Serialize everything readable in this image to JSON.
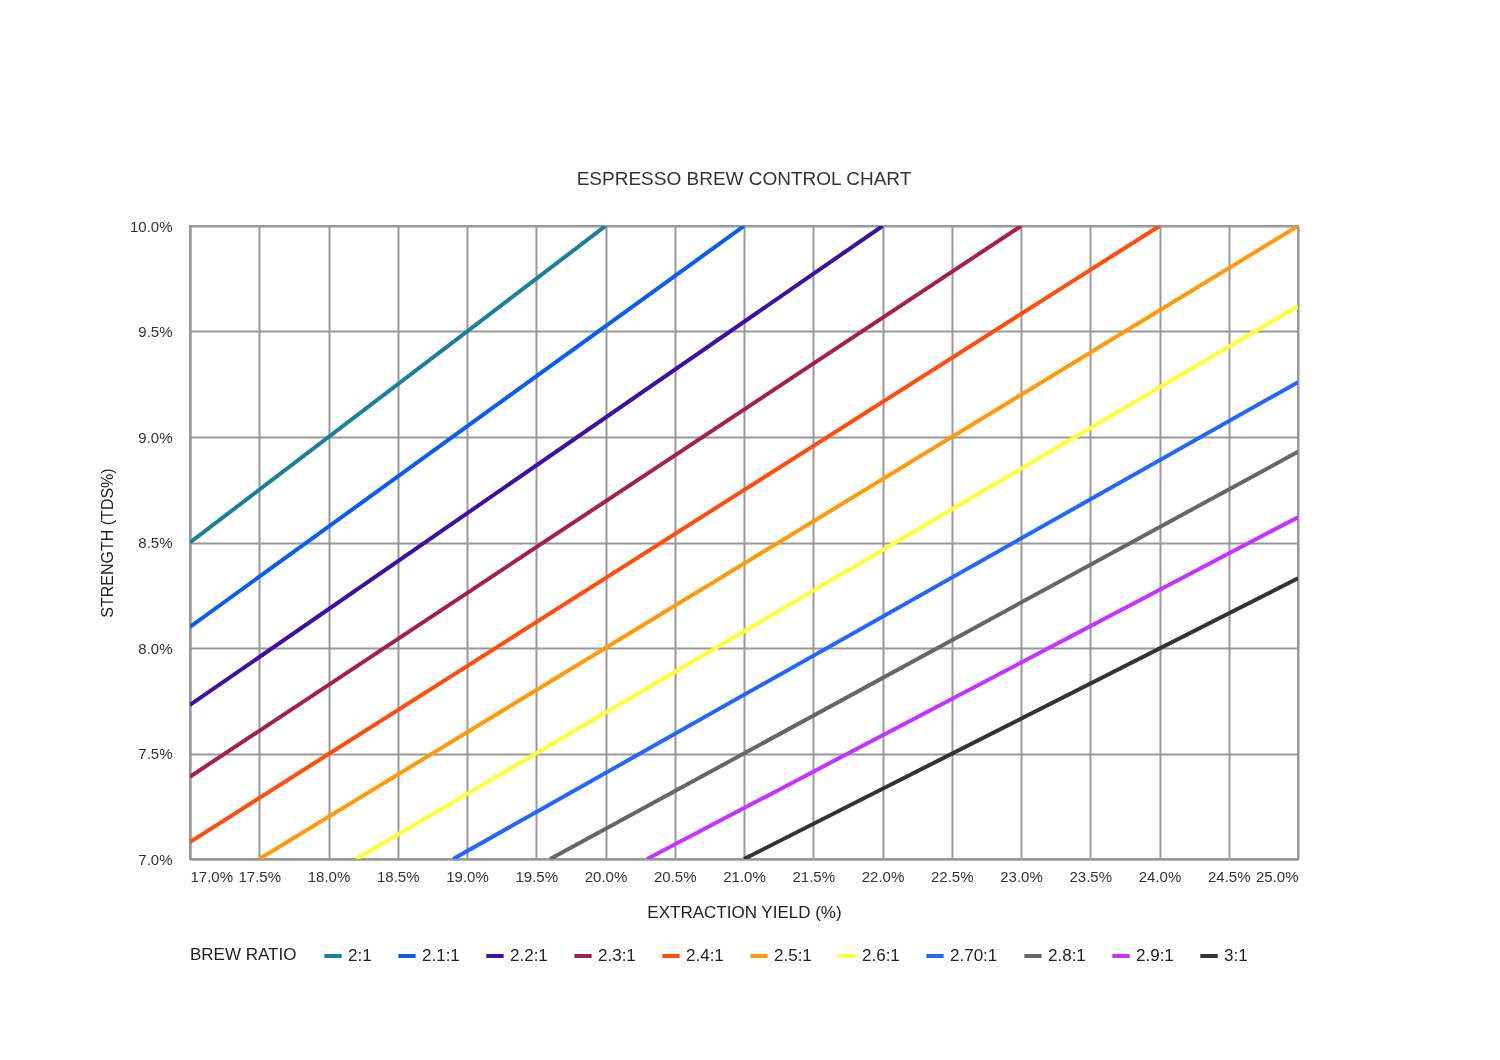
{
  "chart_data": {
    "type": "line",
    "title": "ESPRESSO BREW CONTROL CHART",
    "xlabel": "EXTRACTION YIELD (%)",
    "ylabel": "STRENGTH (TDS%)",
    "legend_title": "BREW RATIO",
    "legend": "bottom",
    "grid": true,
    "line_style": "solid",
    "xlim": [
      17,
      25
    ],
    "ylim": [
      7,
      10
    ],
    "xticks": [
      {
        "value": 17,
        "label": "17.0%"
      },
      {
        "value": 17.5,
        "label": "17.5%"
      },
      {
        "value": 18,
        "label": "18.0%"
      },
      {
        "value": 18.5,
        "label": "18.5%"
      },
      {
        "value": 19,
        "label": "19.0%"
      },
      {
        "value": 19.5,
        "label": "19.5%"
      },
      {
        "value": 20,
        "label": "20.0%"
      },
      {
        "value": 20.5,
        "label": "20.5%"
      },
      {
        "value": 21,
        "label": "21.0%"
      },
      {
        "value": 21.5,
        "label": "21.5%"
      },
      {
        "value": 22,
        "label": "22.0%"
      },
      {
        "value": 22.5,
        "label": "22.5%"
      },
      {
        "value": 23,
        "label": "23.0%"
      },
      {
        "value": 23.5,
        "label": "23.5%"
      },
      {
        "value": 24,
        "label": "24.0%"
      },
      {
        "value": 24.5,
        "label": "24.5%"
      },
      {
        "value": 25,
        "label": "25.0%"
      }
    ],
    "yticks": [
      {
        "value": 7,
        "label": "7.0%"
      },
      {
        "value": 7.5,
        "label": "7.5%"
      },
      {
        "value": 8,
        "label": "8.0%"
      },
      {
        "value": 8.5,
        "label": "8.5%"
      },
      {
        "value": 9,
        "label": "9.0%"
      },
      {
        "value": 9.5,
        "label": "9.5%"
      },
      {
        "value": 10,
        "label": "10.0%"
      }
    ],
    "series": [
      {
        "name": "2:1",
        "color": "#1a7f99",
        "x": [
          17,
          20
        ],
        "values": [
          8.5,
          10
        ]
      },
      {
        "name": "2.1:1",
        "color": "#0b5cf0",
        "x": [
          17,
          21
        ],
        "values": [
          8.1,
          10
        ]
      },
      {
        "name": "2.2:1",
        "color": "#3d0fa3",
        "x": [
          17,
          22
        ],
        "values": [
          7.73,
          10
        ]
      },
      {
        "name": "2.3:1",
        "color": "#a3204f",
        "x": [
          17,
          23
        ],
        "values": [
          7.39,
          10
        ]
      },
      {
        "name": "2.4:1",
        "color": "#ff4d0d",
        "x": [
          17,
          24
        ],
        "values": [
          7.08,
          10
        ]
      },
      {
        "name": "2.5:1",
        "color": "#ff9a0a",
        "x": [
          17.5,
          25
        ],
        "values": [
          7,
          10
        ]
      },
      {
        "name": "2.6:1",
        "color": "#ffff33",
        "x": [
          18.2,
          25
        ],
        "values": [
          7,
          9.62
        ]
      },
      {
        "name": "2.70:1",
        "color": "#2266ff",
        "x": [
          18.9,
          25
        ],
        "values": [
          7,
          9.26
        ]
      },
      {
        "name": "2.8:1",
        "color": "#666666",
        "x": [
          19.6,
          25
        ],
        "values": [
          7,
          8.93
        ]
      },
      {
        "name": "2.9:1",
        "color": "#c433ff",
        "x": [
          20.3,
          25
        ],
        "values": [
          7,
          8.62
        ]
      },
      {
        "name": "3:1",
        "color": "#333333",
        "x": [
          21,
          25
        ],
        "values": [
          7,
          8.33
        ]
      }
    ]
  }
}
